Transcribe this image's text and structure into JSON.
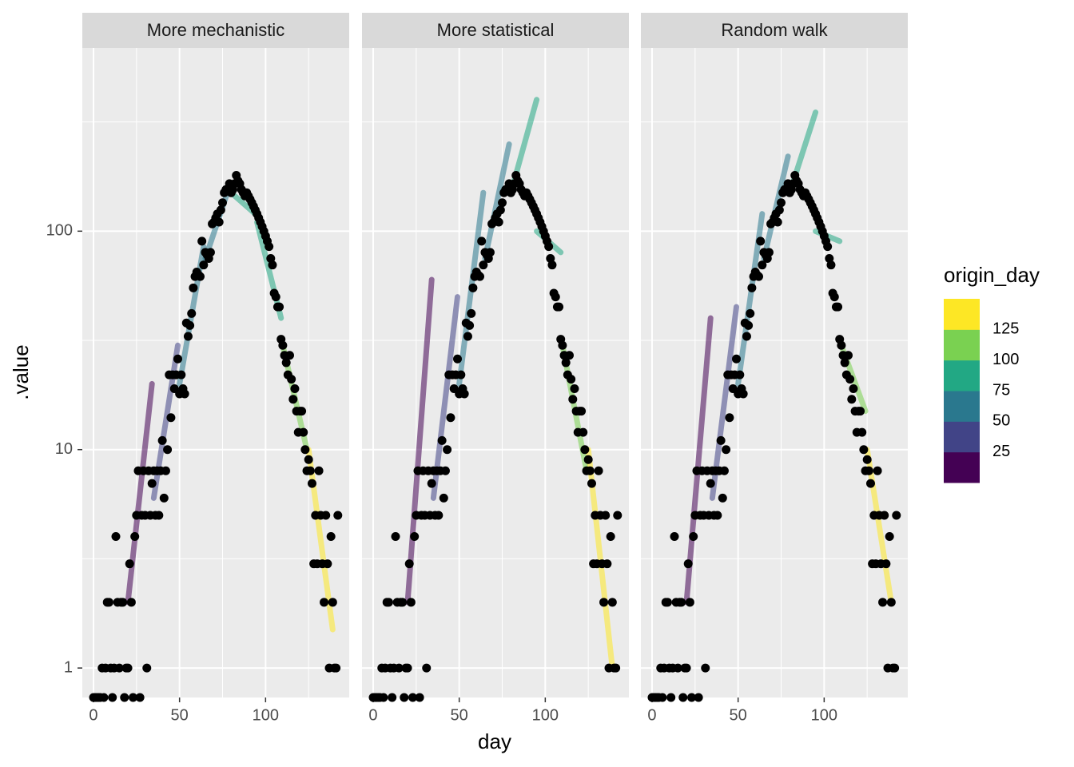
{
  "chart_data": {
    "type": "line",
    "xlabel": "day",
    "ylabel": ".value",
    "log_y": true,
    "xlim": [
      -6.5,
      148.6
    ],
    "ylim": [
      0.733,
      690
    ],
    "xticks": [
      0,
      50,
      100
    ],
    "yticks": [
      1,
      10,
      100
    ],
    "minor_xticks": [
      25,
      75,
      125
    ],
    "minor_yticks": [
      3.162,
      31.62,
      316.2
    ],
    "grid": true,
    "point_color": "#000000",
    "colorbar": {
      "title": "origin_day",
      "breaks": [
        25,
        50,
        75,
        100,
        125
      ],
      "colors": [
        "#440154",
        "#414487",
        "#2a788e",
        "#22a884",
        "#7ad151",
        "#fde725"
      ]
    },
    "observed": {
      "x": [
        0,
        1,
        2,
        3,
        4,
        5,
        6,
        7,
        8,
        9,
        10,
        11,
        12,
        13,
        14,
        15,
        16,
        17,
        18,
        19,
        20,
        21,
        22,
        23,
        24,
        25,
        26,
        27,
        28,
        29,
        30,
        31,
        32,
        33,
        34,
        35,
        36,
        37,
        38,
        39,
        40,
        41,
        42,
        43,
        44,
        45,
        46,
        47,
        48,
        49,
        50,
        51,
        52,
        53,
        54,
        55,
        56,
        57,
        58,
        59,
        60,
        61,
        62,
        63,
        64,
        65,
        66,
        67,
        68,
        69,
        70,
        71,
        72,
        73,
        74,
        75,
        76,
        77,
        78,
        79,
        80,
        81,
        82,
        83,
        84,
        85,
        86,
        87,
        88,
        89,
        90,
        91,
        92,
        93,
        94,
        95,
        96,
        97,
        98,
        99,
        100,
        101,
        102,
        103,
        104,
        105,
        106,
        107,
        108,
        109,
        110,
        111,
        112,
        113,
        114,
        115,
        116,
        117,
        118,
        119,
        120,
        121,
        122,
        123,
        124,
        125,
        126,
        127,
        128,
        129,
        130,
        131,
        132,
        133,
        134,
        135,
        136,
        137,
        138,
        139,
        140,
        141,
        142
      ],
      "values": [
        0,
        0,
        0,
        0,
        0,
        1,
        0,
        1,
        2,
        2,
        1,
        0,
        1,
        4,
        2,
        1,
        2,
        2,
        0,
        1,
        1,
        3,
        2,
        0,
        4,
        5,
        8,
        0,
        5,
        8,
        5,
        1,
        8,
        5,
        7,
        8,
        5,
        8,
        5,
        8,
        11,
        6,
        8,
        10,
        22,
        14,
        22,
        19,
        22,
        26,
        18,
        22,
        19,
        18,
        38,
        33,
        37,
        42,
        55,
        62,
        65,
        63,
        62,
        90,
        70,
        80,
        78,
        75,
        80,
        108,
        110,
        115,
        120,
        110,
        125,
        135,
        150,
        155,
        155,
        165,
        150,
        155,
        165,
        180,
        170,
        165,
        155,
        150,
        145,
        150,
        145,
        140,
        135,
        130,
        125,
        120,
        115,
        110,
        105,
        100,
        95,
        90,
        85,
        75,
        70,
        52,
        50,
        45,
        45,
        32,
        30,
        27,
        25,
        22,
        27,
        21,
        17,
        19,
        15,
        12,
        15,
        15,
        12,
        10,
        8,
        9,
        8,
        7,
        3,
        5,
        3,
        8,
        5,
        3,
        2,
        5,
        3,
        1,
        4,
        2,
        1,
        1,
        5
      ]
    },
    "facets": [
      {
        "title": "More mechanistic",
        "forecasts": [
          {
            "origin_day": 20,
            "x": [
              20,
              34
            ],
            "values": [
              2,
              20
            ]
          },
          {
            "origin_day": 35,
            "x": [
              35,
              49
            ],
            "values": [
              6,
              30
            ]
          },
          {
            "origin_day": 50,
            "x": [
              50,
              64
            ],
            "values": [
              20,
              85
            ]
          },
          {
            "origin_day": 65,
            "x": [
              65,
              79
            ],
            "values": [
              75,
              160
            ]
          },
          {
            "origin_day": 80,
            "x": [
              80,
              94
            ],
            "values": [
              150,
              120
            ]
          },
          {
            "origin_day": 95,
            "x": [
              95,
              109
            ],
            "values": [
              110,
              40
            ]
          },
          {
            "origin_day": 110,
            "x": [
              110,
              124
            ],
            "values": [
              30,
              10
            ]
          },
          {
            "origin_day": 125,
            "x": [
              125,
              139
            ],
            "values": [
              10,
              1.5
            ]
          }
        ]
      },
      {
        "title": "More statistical",
        "forecasts": [
          {
            "origin_day": 20,
            "x": [
              20,
              34
            ],
            "values": [
              2,
              60
            ]
          },
          {
            "origin_day": 35,
            "x": [
              35,
              49
            ],
            "values": [
              6,
              50
            ]
          },
          {
            "origin_day": 50,
            "x": [
              50,
              64
            ],
            "values": [
              20,
              150
            ]
          },
          {
            "origin_day": 65,
            "x": [
              65,
              79
            ],
            "values": [
              75,
              250
            ]
          },
          {
            "origin_day": 80,
            "x": [
              80,
              95
            ],
            "values": [
              150,
              400
            ]
          },
          {
            "origin_day": 95,
            "x": [
              95,
              109
            ],
            "values": [
              100,
              80
            ]
          },
          {
            "origin_day": 110,
            "x": [
              110,
              124
            ],
            "values": [
              30,
              8
            ]
          },
          {
            "origin_day": 125,
            "x": [
              125,
              139
            ],
            "values": [
              10,
              1
            ]
          }
        ]
      },
      {
        "title": "Random walk",
        "forecasts": [
          {
            "origin_day": 20,
            "x": [
              20,
              34
            ],
            "values": [
              2,
              40
            ]
          },
          {
            "origin_day": 35,
            "x": [
              35,
              49
            ],
            "values": [
              6,
              45
            ]
          },
          {
            "origin_day": 50,
            "x": [
              50,
              64
            ],
            "values": [
              20,
              120
            ]
          },
          {
            "origin_day": 65,
            "x": [
              65,
              79
            ],
            "values": [
              75,
              220
            ]
          },
          {
            "origin_day": 80,
            "x": [
              80,
              95
            ],
            "values": [
              150,
              350
            ]
          },
          {
            "origin_day": 95,
            "x": [
              95,
              109
            ],
            "values": [
              100,
              90
            ]
          },
          {
            "origin_day": 110,
            "x": [
              110,
              124
            ],
            "values": [
              30,
              15
            ]
          },
          {
            "origin_day": 125,
            "x": [
              125,
              139
            ],
            "values": [
              10,
              2
            ]
          }
        ]
      }
    ]
  }
}
